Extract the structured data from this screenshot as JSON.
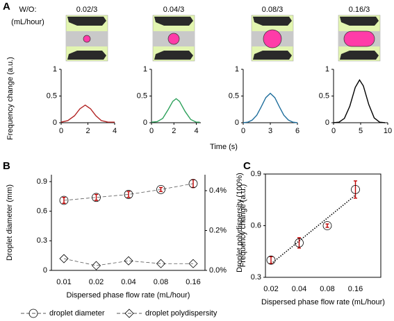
{
  "panels": {
    "a": "A",
    "b": "B",
    "c": "C"
  },
  "schematic": {
    "header": "W/O:",
    "unit": "(mL/hour)",
    "labels": [
      "0.02/3",
      "0.04/3",
      "0.08/3",
      "0.16/3"
    ]
  },
  "shared_labels": {
    "ylabel": "Frequency change (a.u.)",
    "xlabel": "Time (s)"
  },
  "chart_data": [
    {
      "type": "line",
      "color": "#b22222",
      "xlim": [
        0,
        4
      ],
      "xticks": [
        0,
        2,
        4
      ],
      "ylim": [
        0,
        1
      ],
      "yticks": [
        0,
        0.5,
        1
      ],
      "x": [
        0,
        0.5,
        1,
        1.4,
        1.8,
        2.2,
        2.6,
        3,
        3.5,
        4
      ],
      "values": [
        0.01,
        0.04,
        0.13,
        0.26,
        0.33,
        0.26,
        0.13,
        0.04,
        0.01,
        0.01
      ]
    },
    {
      "type": "line",
      "color": "#2ca05a",
      "xlim": [
        0,
        4.4
      ],
      "xticks": [
        0,
        2,
        4
      ],
      "ylim": [
        0,
        1
      ],
      "yticks": [
        0,
        0.5,
        1
      ],
      "x": [
        0,
        0.5,
        1,
        1.5,
        1.9,
        2.2,
        2.5,
        3,
        3.5,
        4,
        4.3
      ],
      "values": [
        0.01,
        0.02,
        0.08,
        0.25,
        0.4,
        0.45,
        0.4,
        0.21,
        0.06,
        0.01,
        0.01
      ]
    },
    {
      "type": "line",
      "color": "#1f6e9c",
      "xlim": [
        0,
        6
      ],
      "xticks": [
        0,
        3,
        6
      ],
      "ylim": [
        0,
        1
      ],
      "yticks": [
        0,
        0.5,
        1
      ],
      "x": [
        0,
        0.5,
        1,
        1.5,
        2,
        2.5,
        3,
        3.5,
        4,
        4.5,
        5,
        5.5,
        6
      ],
      "values": [
        0,
        0.01,
        0.05,
        0.14,
        0.3,
        0.47,
        0.55,
        0.47,
        0.3,
        0.14,
        0.05,
        0.01,
        0
      ]
    },
    {
      "type": "line",
      "color": "#000000",
      "xlim": [
        0,
        10
      ],
      "xticks": [
        0,
        5,
        10
      ],
      "ylim": [
        0,
        1
      ],
      "yticks": [
        0,
        0.5,
        1
      ],
      "x": [
        0,
        1,
        2,
        3,
        4,
        4.8,
        5.5,
        6.5,
        7.5,
        8.5,
        9.5
      ],
      "values": [
        0,
        0.01,
        0.08,
        0.31,
        0.66,
        0.8,
        0.69,
        0.34,
        0.09,
        0.01,
        0
      ]
    },
    {
      "type": "errorbar",
      "categories": [
        "0.01",
        "0.02",
        "0.04",
        "0.08",
        "0.16"
      ],
      "xlabel": "Dispersed phase flow rate (mL/hour)",
      "ylabel": "Droplet diameter (mm)",
      "y2label": "Droplet polydispersity (100%)",
      "ylim": [
        0,
        0.97
      ],
      "yticks": [
        0,
        0.3,
        0.6,
        0.9
      ],
      "y2lim": [
        0,
        0.48
      ],
      "y2ticks": [
        {
          "value": 0,
          "label": "0.0%"
        },
        {
          "value": 0.2,
          "label": "0.2%"
        },
        {
          "value": 0.4,
          "label": "0.4%"
        }
      ],
      "legend": "bottom",
      "series": [
        {
          "name": "droplet diameter",
          "color": "#000000",
          "error_color": "#c00000",
          "marker": "circle",
          "values": [
            0.71,
            0.74,
            0.77,
            0.82,
            0.88
          ],
          "errors": [
            0.03,
            0.03,
            0.03,
            0.02,
            0.04
          ]
        },
        {
          "name": "droplet polydispersity",
          "color": "#000000",
          "marker": "diamond",
          "axis": "y2",
          "values": [
            0.059,
            0.024,
            0.048,
            0.034,
            0.034
          ]
        }
      ]
    },
    {
      "type": "errorbar",
      "categories": [
        "0.02",
        "0.04",
        "0.08",
        "0.16"
      ],
      "xlabel": "Dispersed phase flow rate (mL/hour)",
      "ylabel": "Frequency change (a.u.)",
      "ylim": [
        0.3,
        0.9
      ],
      "yticks": [
        0.3,
        0.6,
        0.9
      ],
      "trendline": true,
      "series": [
        {
          "color": "#000000",
          "error_color": "#c00000",
          "marker": "circle",
          "values": [
            0.4,
            0.5,
            0.6,
            0.81
          ],
          "errors": [
            0.02,
            0.03,
            0.01,
            0.05
          ]
        }
      ]
    }
  ]
}
